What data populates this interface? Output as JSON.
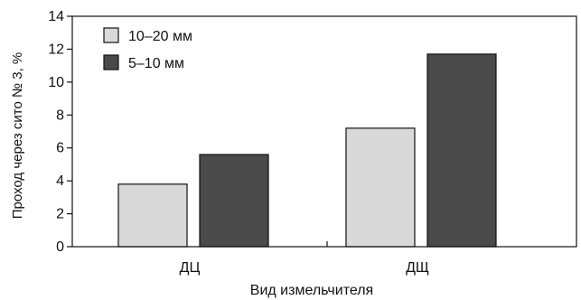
{
  "chart_data": {
    "type": "bar",
    "categories": [
      "ДЦ",
      "ДЩ"
    ],
    "series": [
      {
        "name": "10–20 мм",
        "values": [
          3.8,
          7.2
        ],
        "color": "#d9d9d9"
      },
      {
        "name": "5–10 мм",
        "values": [
          5.6,
          11.7
        ],
        "color": "#4a4a4a"
      }
    ],
    "xlabel": "Вид измельчителя",
    "ylabel": "Проход через сито № 3, %",
    "ylim": [
      0,
      14
    ],
    "yticks": [
      0,
      2,
      4,
      6,
      8,
      10,
      12,
      14
    ],
    "grid": false,
    "legend_position": "top-left"
  }
}
